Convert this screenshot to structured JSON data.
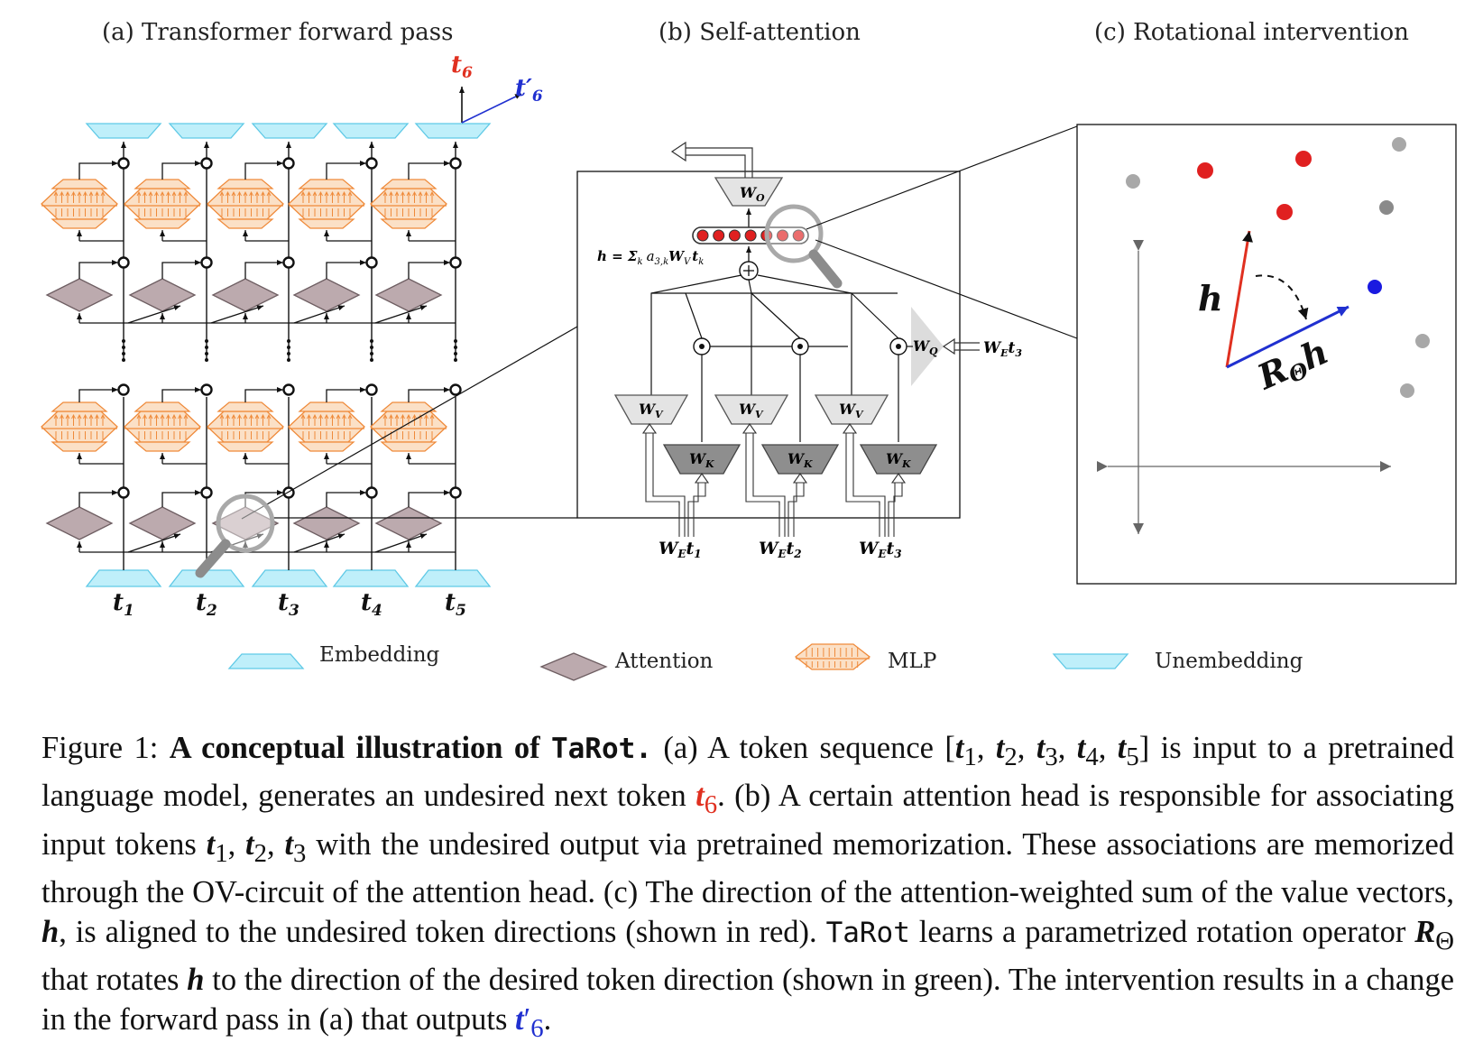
{
  "panels": {
    "a_title": "(a) Transformer forward pass",
    "b_title": "(b) Self-attention",
    "c_title": "(c) Rotational intervention"
  },
  "panel_a": {
    "tokens": [
      "t",
      "t",
      "t",
      "t",
      "t"
    ],
    "token_subs": [
      "1",
      "2",
      "3",
      "4",
      "5"
    ],
    "out_red": "t",
    "out_red_sub": "6",
    "out_blue": "t′",
    "out_blue_sub": "6"
  },
  "panel_b": {
    "w_o": "W",
    "w_o_sub": "O",
    "h_formula": "h = Σ",
    "h_formula_sub": "k",
    "h_formula_rest": "a",
    "h_formula_rest_sub": "3,k",
    "h_formula_tail": "W",
    "h_formula_tail_sub": "V",
    "h_formula_end": "t",
    "h_formula_end_sub": "k",
    "w_v": "W",
    "w_v_sub": "V",
    "w_k": "W",
    "w_k_sub": "K",
    "w_q": "W",
    "w_q_sub": "Q",
    "inputs": [
      {
        "w": "W",
        "w_sub": "E",
        "t": "t",
        "t_sub": "1"
      },
      {
        "w": "W",
        "w_sub": "E",
        "t": "t",
        "t_sub": "2"
      },
      {
        "w": "W",
        "w_sub": "E",
        "t": "t",
        "t_sub": "3"
      }
    ],
    "q_input": {
      "w": "W",
      "w_sub": "E",
      "t": "t",
      "t_sub": "3"
    }
  },
  "panel_c": {
    "h_label": "h",
    "rotated_label": "R",
    "rotated_sub": "Θ",
    "rotated_tail": "h"
  },
  "legend": {
    "embedding": "Embedding",
    "attention": "Attention",
    "mlp": "MLP",
    "unembedding": "Unembedding"
  },
  "colors": {
    "embedding": "#bfeffa",
    "embedding_stroke": "#5fc9e6",
    "attention": "#bcaaae",
    "attention_stroke": "#6e5e62",
    "mlp": "#fbe0c6",
    "mlp_stroke": "#ef8a3a",
    "red_token": "#e03020",
    "blue_token": "#2030d0",
    "gray_point": "#a8a8a8"
  },
  "caption": {
    "fig": "Figure 1:",
    "bold_lead": "A conceptual illustration of",
    "bold_name": "TaRot.",
    "p1": "(a) A token sequence [",
    "p1_end": "] is input to a pretrained language model, generates an undesired next token",
    "p2": ". (b) A certain attention head is responsible for associating input tokens",
    "p2_mid": "with the undesired output via pretrained memorization. These associations are memorized through the OV-circuit of the attention head. (c) The direction of the attention-weighted sum of the value vectors,",
    "p3": ", is aligned to the undesired token directions (shown in red).",
    "name2": "TaRot",
    "p4": "learns a parametrized rotation operator",
    "p5": "that rotates",
    "p6": "to the direction of the desired token direction (shown in green). The intervention results in a change in the forward pass in (a) that outputs",
    "tok_t": "t",
    "sub1": "1",
    "sub2": "2",
    "sub3": "3",
    "sub4": "4",
    "sub5": "5",
    "sub6": "6",
    "comma": ",",
    "h": "h",
    "R": "R",
    "Theta": "Θ",
    "prime": "′",
    "period": "."
  }
}
